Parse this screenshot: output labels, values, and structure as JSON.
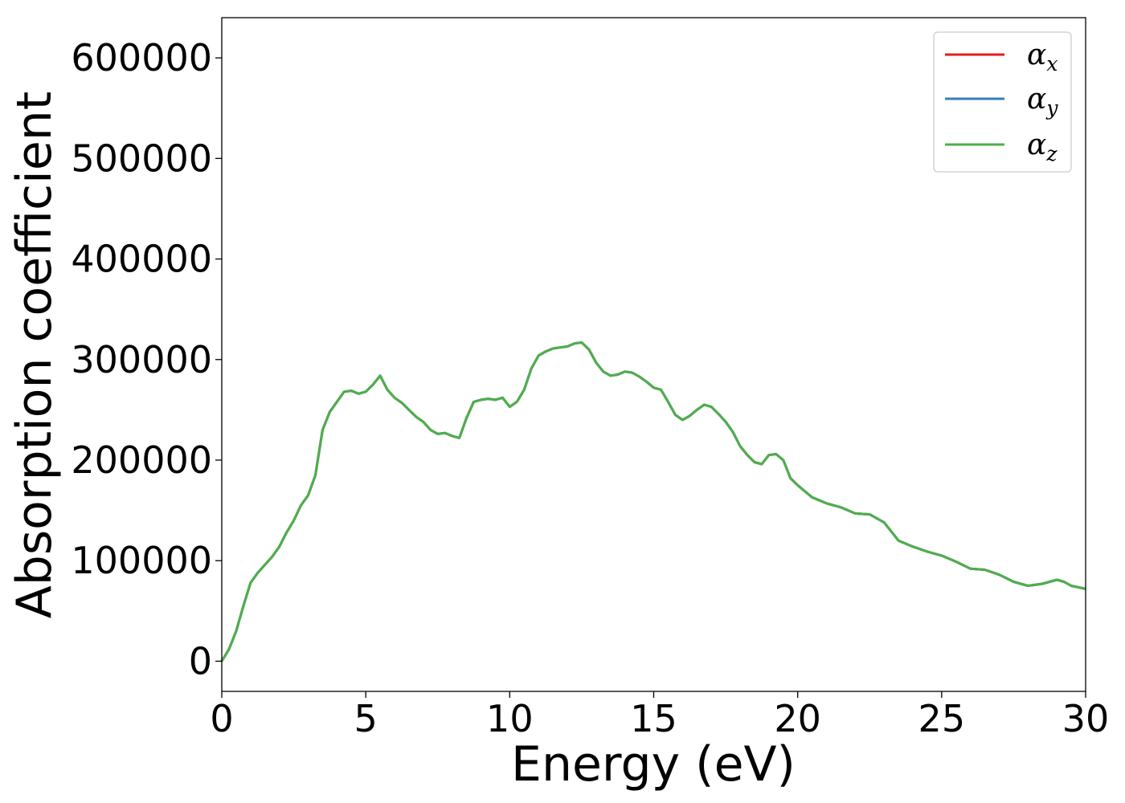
{
  "chart_data": {
    "type": "line",
    "xlabel": "Energy (eV)",
    "ylabel": "Absorption coefficient",
    "xlim": [
      0,
      30
    ],
    "ylim": [
      -30000,
      640000
    ],
    "xticks": [
      0,
      5,
      10,
      15,
      20,
      25,
      30
    ],
    "xtick_labels": [
      "0",
      "5",
      "10",
      "15",
      "20",
      "25",
      "30"
    ],
    "yticks": [
      0,
      100000,
      200000,
      300000,
      400000,
      500000,
      600000
    ],
    "ytick_labels": [
      "0",
      "100000",
      "200000",
      "300000",
      "400000",
      "500000",
      "600000"
    ],
    "grid": false,
    "legend_position": "top-right",
    "x": [
      0,
      0.25,
      0.5,
      0.75,
      1,
      1.25,
      1.5,
      1.75,
      2,
      2.25,
      2.5,
      2.75,
      3,
      3.25,
      3.5,
      3.75,
      4,
      4.25,
      4.5,
      4.75,
      5,
      5.25,
      5.5,
      5.75,
      6,
      6.25,
      6.5,
      6.75,
      7,
      7.25,
      7.5,
      7.75,
      8,
      8.25,
      8.5,
      8.75,
      9,
      9.25,
      9.5,
      9.75,
      10,
      10.25,
      10.5,
      10.75,
      11,
      11.25,
      11.5,
      11.75,
      12,
      12.25,
      12.5,
      12.75,
      13,
      13.25,
      13.5,
      13.75,
      14,
      14.25,
      14.5,
      14.75,
      15,
      15.25,
      15.5,
      15.75,
      16,
      16.25,
      16.5,
      16.75,
      17,
      17.25,
      17.5,
      17.75,
      18,
      18.25,
      18.5,
      18.75,
      19,
      19.25,
      19.5,
      19.75,
      20,
      20.5,
      21,
      21.5,
      22,
      22.5,
      23,
      23.5,
      24,
      24.5,
      25,
      25.5,
      26,
      26.5,
      27,
      27.5,
      28,
      28.5,
      29,
      29.25,
      29.5,
      30
    ],
    "series": [
      {
        "name": "x",
        "color": "#e41a1c",
        "values": [
          0,
          12000,
          30000,
          55000,
          78000,
          88000,
          96000,
          104000,
          114000,
          128000,
          140000,
          155000,
          165000,
          185000,
          230000,
          248000,
          258000,
          268000,
          269000,
          266000,
          268000,
          275000,
          284000,
          270000,
          262000,
          257000,
          250000,
          243000,
          238000,
          230000,
          226000,
          227000,
          224000,
          222000,
          242000,
          258000,
          260000,
          261000,
          260000,
          262000,
          253000,
          258000,
          270000,
          291000,
          304000,
          308000,
          311000,
          312000,
          313000,
          316000,
          317000,
          310000,
          297000,
          288000,
          284000,
          285000,
          288000,
          287000,
          283000,
          278000,
          272000,
          270000,
          258000,
          245000,
          240000,
          244000,
          250000,
          255000,
          253000,
          246000,
          238000,
          228000,
          214000,
          205000,
          198000,
          196000,
          205000,
          206000,
          200000,
          182000,
          175000,
          163000,
          157000,
          153000,
          147000,
          146000,
          138000,
          120000,
          114000,
          109000,
          105000,
          99000,
          92000,
          91000,
          86000,
          79000,
          75000,
          77000,
          81000,
          79000,
          75000,
          72000
        ]
      },
      {
        "name": "y",
        "color": "#377eb8",
        "values": [
          0,
          12000,
          30000,
          55000,
          78000,
          88000,
          96000,
          104000,
          114000,
          128000,
          140000,
          155000,
          165000,
          185000,
          230000,
          248000,
          258000,
          268000,
          269000,
          266000,
          268000,
          275000,
          284000,
          270000,
          262000,
          257000,
          250000,
          243000,
          238000,
          230000,
          226000,
          227000,
          224000,
          222000,
          242000,
          258000,
          260000,
          261000,
          260000,
          262000,
          253000,
          258000,
          270000,
          291000,
          304000,
          308000,
          311000,
          312000,
          313000,
          316000,
          317000,
          310000,
          297000,
          288000,
          284000,
          285000,
          288000,
          287000,
          283000,
          278000,
          272000,
          270000,
          258000,
          245000,
          240000,
          244000,
          250000,
          255000,
          253000,
          246000,
          238000,
          228000,
          214000,
          205000,
          198000,
          196000,
          205000,
          206000,
          200000,
          182000,
          175000,
          163000,
          157000,
          153000,
          147000,
          146000,
          138000,
          120000,
          114000,
          109000,
          105000,
          99000,
          92000,
          91000,
          86000,
          79000,
          75000,
          77000,
          81000,
          79000,
          75000,
          72000
        ]
      },
      {
        "name": "z",
        "color": "#4daf4a",
        "values": [
          0,
          12000,
          30000,
          55000,
          78000,
          88000,
          96000,
          104000,
          114000,
          128000,
          140000,
          155000,
          165000,
          185000,
          230000,
          248000,
          258000,
          268000,
          269000,
          266000,
          268000,
          275000,
          284000,
          270000,
          262000,
          257000,
          250000,
          243000,
          238000,
          230000,
          226000,
          227000,
          224000,
          222000,
          242000,
          258000,
          260000,
          261000,
          260000,
          262000,
          253000,
          258000,
          270000,
          291000,
          304000,
          308000,
          311000,
          312000,
          313000,
          316000,
          317000,
          310000,
          297000,
          288000,
          284000,
          285000,
          288000,
          287000,
          283000,
          278000,
          272000,
          270000,
          258000,
          245000,
          240000,
          244000,
          250000,
          255000,
          253000,
          246000,
          238000,
          228000,
          214000,
          205000,
          198000,
          196000,
          205000,
          206000,
          200000,
          182000,
          175000,
          163000,
          157000,
          153000,
          147000,
          146000,
          138000,
          120000,
          114000,
          109000,
          105000,
          99000,
          92000,
          91000,
          86000,
          79000,
          75000,
          77000,
          81000,
          79000,
          75000,
          72000
        ]
      }
    ],
    "legend": [
      {
        "symbol": "α",
        "sub": "x",
        "color": "#e41a1c"
      },
      {
        "symbol": "α",
        "sub": "y",
        "color": "#377eb8"
      },
      {
        "symbol": "α",
        "sub": "z",
        "color": "#4daf4a"
      }
    ]
  }
}
